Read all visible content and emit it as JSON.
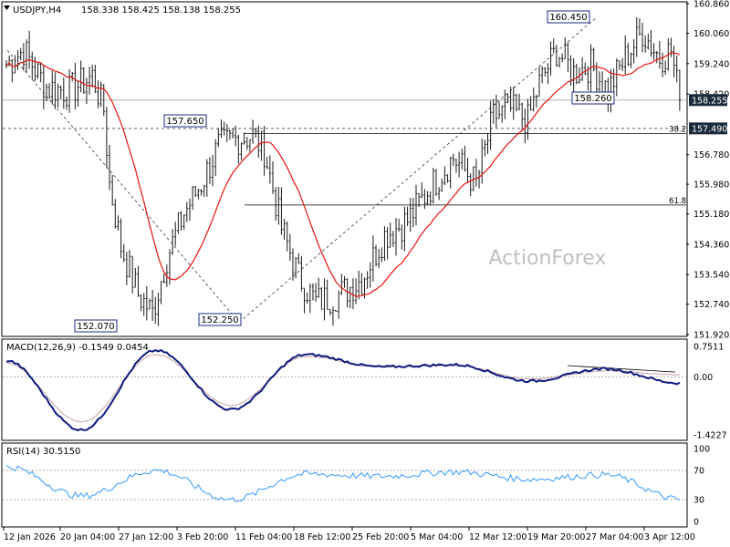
{
  "header": {
    "symbol": "USDJPY,H4",
    "ohlc": "158.338 158.425 158.138 158.255"
  },
  "watermark": "ActionForex",
  "colors": {
    "candles": "#1a1a1a",
    "ma": "#e8140f",
    "macd_main": "#0d1a80",
    "macd_signal": "#c8a0a0",
    "rsi": "#1e90ff",
    "price_tag_bg": "#1a2a3a",
    "frame": "#000000",
    "grid_dotted": "#a0a0a0",
    "annotation_border": "#1e2a8a"
  },
  "chart_data": [
    {
      "type": "candlestick",
      "title": "USDJPY,H4",
      "y_ticks": [
        "160.860",
        "160.060",
        "159.240",
        "158.420",
        "156.780",
        "155.980",
        "155.180",
        "154.360",
        "153.540",
        "152.740",
        "151.920"
      ],
      "ylim": [
        151.92,
        160.86
      ],
      "x_ticks": [
        "12 Jan 2026",
        "20 Jan 04:00",
        "27 Jan 12:00",
        "3 Feb 20:00",
        "11 Feb 04:00",
        "18 Feb 12:00",
        "25 Feb 20:00",
        "5 Mar 04:00",
        "12 Mar 12:00",
        "19 Mar 20:00",
        "27 Mar 04:00",
        "3 Apr 12:00"
      ],
      "current_price": "158.255",
      "dotted_level_label": "157.490",
      "dotted_level": 157.49,
      "fib_levels": [
        {
          "label": "38.2",
          "value": 157.35
        },
        {
          "label": "61.8",
          "value": 155.42
        }
      ],
      "annotations": [
        {
          "label": "160.450",
          "value": 160.45
        },
        {
          "label": "158.260",
          "value": 158.26
        },
        {
          "label": "157.650",
          "value": 157.65
        },
        {
          "label": "152.070",
          "value": 152.07
        },
        {
          "label": "152.250",
          "value": 152.25
        }
      ],
      "key_points": [
        {
          "x": "12 Jan 2026",
          "y": 159.3
        },
        {
          "x": "28 Jan",
          "y": 152.07
        },
        {
          "x": "5 Feb",
          "y": 157.65
        },
        {
          "x": "11 Feb",
          "y": 152.25
        },
        {
          "x": "1 Apr",
          "y": 160.45
        },
        {
          "x": "6 Apr",
          "y": 158.255
        }
      ],
      "overlay": "moving average"
    },
    {
      "type": "line",
      "title": "MACD(12,26,9) -0.1549 0.0454",
      "y_ticks": [
        "0.7511",
        "0.00",
        "-1.4227"
      ],
      "ylim": [
        -1.4227,
        0.7511
      ],
      "series": [
        {
          "name": "MACD",
          "key_values": [
            0.4,
            -1.3,
            0.65,
            -0.8,
            0.55,
            0.25,
            0.3,
            -0.1,
            0.2,
            -0.15
          ]
        },
        {
          "name": "Signal",
          "key_values": [
            0.35,
            -1.1,
            0.55,
            -0.7,
            0.5,
            0.25,
            0.28,
            -0.05,
            0.15,
            0.05
          ]
        }
      ]
    },
    {
      "type": "line",
      "title": "RSI(14) 30.5150",
      "y_ticks": [
        "100",
        "70",
        "30",
        "0"
      ],
      "ylim": [
        0,
        100
      ],
      "levels": [
        70,
        30
      ],
      "series": [
        {
          "name": "RSI",
          "key_values": [
            75,
            35,
            70,
            30,
            65,
            62,
            68,
            58,
            64,
            30.5
          ]
        }
      ]
    }
  ]
}
